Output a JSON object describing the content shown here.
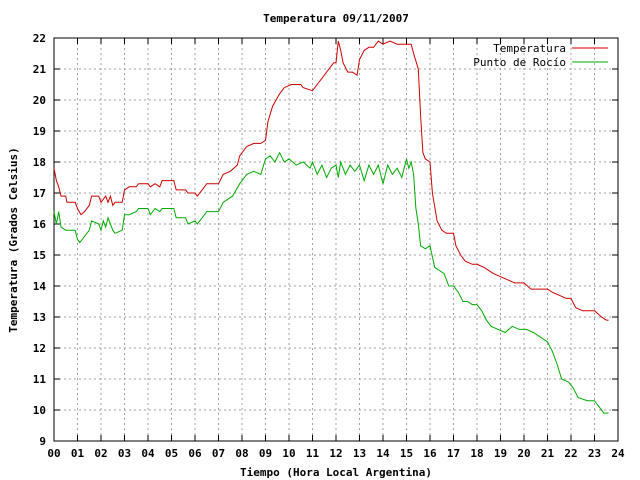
{
  "chart_data": {
    "type": "line",
    "title": "Temperatura 09/11/2007",
    "xlabel": "Tiempo (Hora Local Argentina)",
    "ylabel": "Temperatura (Grados Celsius)",
    "xlim": [
      0,
      24
    ],
    "ylim": [
      9,
      22
    ],
    "x_ticks": [
      "00",
      "01",
      "02",
      "03",
      "04",
      "05",
      "06",
      "07",
      "08",
      "09",
      "10",
      "11",
      "12",
      "13",
      "14",
      "15",
      "16",
      "17",
      "18",
      "19",
      "20",
      "21",
      "22",
      "23",
      "24"
    ],
    "y_ticks": [
      "9",
      "10",
      "11",
      "12",
      "13",
      "14",
      "15",
      "16",
      "17",
      "18",
      "19",
      "20",
      "21",
      "22"
    ],
    "grid": true,
    "legend_position": "top-right",
    "series": [
      {
        "name": "Temperatura",
        "color": "#cc0000",
        "points": [
          [
            0.0,
            17.8
          ],
          [
            0.1,
            17.4
          ],
          [
            0.2,
            17.2
          ],
          [
            0.3,
            16.9
          ],
          [
            0.5,
            16.9
          ],
          [
            0.55,
            16.7
          ],
          [
            0.9,
            16.7
          ],
          [
            1.0,
            16.5
          ],
          [
            1.15,
            16.3
          ],
          [
            1.3,
            16.4
          ],
          [
            1.5,
            16.6
          ],
          [
            1.6,
            16.9
          ],
          [
            1.9,
            16.9
          ],
          [
            2.0,
            16.7
          ],
          [
            2.2,
            16.9
          ],
          [
            2.3,
            16.7
          ],
          [
            2.4,
            16.9
          ],
          [
            2.5,
            16.6
          ],
          [
            2.6,
            16.7
          ],
          [
            2.9,
            16.7
          ],
          [
            3.0,
            17.1
          ],
          [
            3.2,
            17.2
          ],
          [
            3.5,
            17.2
          ],
          [
            3.6,
            17.3
          ],
          [
            4.0,
            17.3
          ],
          [
            4.1,
            17.2
          ],
          [
            4.3,
            17.3
          ],
          [
            4.5,
            17.2
          ],
          [
            4.6,
            17.4
          ],
          [
            5.1,
            17.4
          ],
          [
            5.2,
            17.1
          ],
          [
            5.6,
            17.1
          ],
          [
            5.7,
            17.0
          ],
          [
            6.0,
            17.0
          ],
          [
            6.1,
            16.9
          ],
          [
            6.3,
            17.1
          ],
          [
            6.5,
            17.3
          ],
          [
            7.0,
            17.3
          ],
          [
            7.2,
            17.6
          ],
          [
            7.5,
            17.7
          ],
          [
            7.8,
            17.9
          ],
          [
            7.9,
            18.2
          ],
          [
            8.2,
            18.5
          ],
          [
            8.5,
            18.6
          ],
          [
            8.8,
            18.6
          ],
          [
            9.0,
            18.7
          ],
          [
            9.1,
            19.3
          ],
          [
            9.3,
            19.8
          ],
          [
            9.6,
            20.2
          ],
          [
            9.8,
            20.4
          ],
          [
            10.1,
            20.5
          ],
          [
            10.5,
            20.5
          ],
          [
            10.6,
            20.4
          ],
          [
            11.0,
            20.3
          ],
          [
            11.2,
            20.5
          ],
          [
            11.5,
            20.8
          ],
          [
            11.7,
            21.0
          ],
          [
            11.9,
            21.2
          ],
          [
            12.0,
            21.2
          ],
          [
            12.1,
            21.9
          ],
          [
            12.2,
            21.6
          ],
          [
            12.3,
            21.2
          ],
          [
            12.5,
            20.9
          ],
          [
            12.7,
            20.9
          ],
          [
            12.9,
            20.8
          ],
          [
            13.0,
            21.3
          ],
          [
            13.2,
            21.6
          ],
          [
            13.4,
            21.7
          ],
          [
            13.6,
            21.7
          ],
          [
            13.8,
            21.9
          ],
          [
            14.0,
            21.8
          ],
          [
            14.3,
            21.9
          ],
          [
            14.6,
            21.8
          ],
          [
            15.0,
            21.8
          ],
          [
            15.2,
            21.8
          ],
          [
            15.3,
            21.5
          ],
          [
            15.5,
            21.0
          ],
          [
            15.6,
            19.5
          ],
          [
            15.7,
            18.3
          ],
          [
            15.8,
            18.1
          ],
          [
            16.0,
            18.0
          ],
          [
            16.1,
            17.0
          ],
          [
            16.3,
            16.1
          ],
          [
            16.5,
            15.8
          ],
          [
            16.7,
            15.7
          ],
          [
            17.0,
            15.7
          ],
          [
            17.1,
            15.3
          ],
          [
            17.3,
            15.0
          ],
          [
            17.5,
            14.8
          ],
          [
            17.8,
            14.7
          ],
          [
            18.0,
            14.7
          ],
          [
            18.3,
            14.6
          ],
          [
            18.7,
            14.4
          ],
          [
            19.0,
            14.3
          ],
          [
            19.3,
            14.2
          ],
          [
            19.6,
            14.1
          ],
          [
            20.0,
            14.1
          ],
          [
            20.3,
            13.9
          ],
          [
            20.7,
            13.9
          ],
          [
            21.0,
            13.9
          ],
          [
            21.2,
            13.8
          ],
          [
            21.5,
            13.7
          ],
          [
            21.8,
            13.6
          ],
          [
            22.0,
            13.6
          ],
          [
            22.2,
            13.3
          ],
          [
            22.5,
            13.2
          ],
          [
            23.0,
            13.2
          ],
          [
            23.3,
            13.0
          ],
          [
            23.5,
            12.9
          ],
          [
            23.6,
            12.9
          ]
        ]
      },
      {
        "name": "Punto de Rocío",
        "color": "#00aa00",
        "points": [
          [
            0.0,
            16.4
          ],
          [
            0.1,
            16.0
          ],
          [
            0.2,
            16.4
          ],
          [
            0.3,
            15.9
          ],
          [
            0.5,
            15.8
          ],
          [
            0.9,
            15.8
          ],
          [
            1.0,
            15.5
          ],
          [
            1.1,
            15.4
          ],
          [
            1.3,
            15.6
          ],
          [
            1.5,
            15.8
          ],
          [
            1.6,
            16.1
          ],
          [
            1.9,
            16.0
          ],
          [
            2.0,
            15.8
          ],
          [
            2.1,
            16.1
          ],
          [
            2.2,
            15.9
          ],
          [
            2.3,
            16.2
          ],
          [
            2.5,
            15.8
          ],
          [
            2.6,
            15.7
          ],
          [
            2.9,
            15.8
          ],
          [
            3.0,
            16.3
          ],
          [
            3.2,
            16.3
          ],
          [
            3.5,
            16.4
          ],
          [
            3.6,
            16.5
          ],
          [
            4.0,
            16.5
          ],
          [
            4.1,
            16.3
          ],
          [
            4.3,
            16.5
          ],
          [
            4.5,
            16.4
          ],
          [
            4.6,
            16.5
          ],
          [
            5.1,
            16.5
          ],
          [
            5.2,
            16.2
          ],
          [
            5.6,
            16.2
          ],
          [
            5.7,
            16.0
          ],
          [
            6.0,
            16.1
          ],
          [
            6.1,
            16.0
          ],
          [
            6.3,
            16.2
          ],
          [
            6.5,
            16.4
          ],
          [
            7.0,
            16.4
          ],
          [
            7.2,
            16.7
          ],
          [
            7.6,
            16.9
          ],
          [
            7.9,
            17.3
          ],
          [
            8.2,
            17.6
          ],
          [
            8.5,
            17.7
          ],
          [
            8.8,
            17.6
          ],
          [
            9.0,
            18.1
          ],
          [
            9.2,
            18.2
          ],
          [
            9.4,
            18.0
          ],
          [
            9.6,
            18.3
          ],
          [
            9.8,
            18.0
          ],
          [
            10.0,
            18.1
          ],
          [
            10.3,
            17.9
          ],
          [
            10.6,
            18.0
          ],
          [
            10.9,
            17.8
          ],
          [
            11.0,
            18.0
          ],
          [
            11.2,
            17.6
          ],
          [
            11.4,
            17.9
          ],
          [
            11.6,
            17.5
          ],
          [
            11.8,
            17.8
          ],
          [
            12.0,
            17.9
          ],
          [
            12.1,
            17.5
          ],
          [
            12.2,
            18.0
          ],
          [
            12.4,
            17.6
          ],
          [
            12.6,
            17.9
          ],
          [
            12.8,
            17.7
          ],
          [
            13.0,
            17.9
          ],
          [
            13.2,
            17.4
          ],
          [
            13.4,
            17.9
          ],
          [
            13.6,
            17.6
          ],
          [
            13.8,
            17.9
          ],
          [
            14.0,
            17.3
          ],
          [
            14.2,
            17.9
          ],
          [
            14.4,
            17.6
          ],
          [
            14.6,
            17.8
          ],
          [
            14.8,
            17.5
          ],
          [
            15.0,
            18.1
          ],
          [
            15.1,
            17.8
          ],
          [
            15.2,
            18.0
          ],
          [
            15.3,
            17.6
          ],
          [
            15.4,
            16.5
          ],
          [
            15.5,
            16.0
          ],
          [
            15.6,
            15.3
          ],
          [
            15.8,
            15.2
          ],
          [
            16.0,
            15.3
          ],
          [
            16.2,
            14.6
          ],
          [
            16.4,
            14.5
          ],
          [
            16.6,
            14.4
          ],
          [
            16.8,
            14.0
          ],
          [
            17.0,
            14.0
          ],
          [
            17.2,
            13.8
          ],
          [
            17.4,
            13.5
          ],
          [
            17.6,
            13.5
          ],
          [
            17.8,
            13.4
          ],
          [
            18.0,
            13.4
          ],
          [
            18.2,
            13.2
          ],
          [
            18.4,
            12.9
          ],
          [
            18.6,
            12.7
          ],
          [
            18.9,
            12.6
          ],
          [
            19.2,
            12.5
          ],
          [
            19.5,
            12.7
          ],
          [
            19.8,
            12.6
          ],
          [
            20.1,
            12.6
          ],
          [
            20.4,
            12.5
          ],
          [
            20.8,
            12.3
          ],
          [
            21.0,
            12.2
          ],
          [
            21.2,
            11.9
          ],
          [
            21.4,
            11.5
          ],
          [
            21.6,
            11.0
          ],
          [
            21.9,
            10.9
          ],
          [
            22.1,
            10.7
          ],
          [
            22.3,
            10.4
          ],
          [
            22.7,
            10.3
          ],
          [
            23.0,
            10.3
          ],
          [
            23.2,
            10.1
          ],
          [
            23.4,
            9.9
          ],
          [
            23.6,
            9.9
          ]
        ]
      }
    ]
  }
}
